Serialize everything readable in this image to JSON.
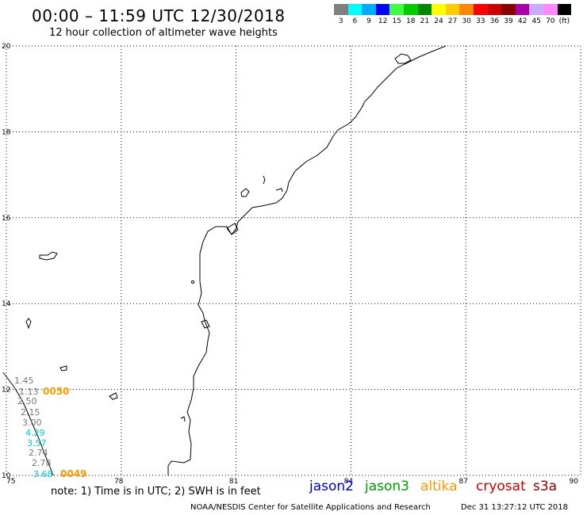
{
  "title": "00:00 – 11:59 UTC 12/30/2018",
  "subtitle": "12 hour collection of altimeter wave heights",
  "scale": {
    "colors": [
      "#7f7f7f",
      "#00ffff",
      "#00aaff",
      "#0000ff",
      "#40ff40",
      "#00cc00",
      "#008800",
      "#ffff00",
      "#ffcc00",
      "#ff8800",
      "#ff0000",
      "#cc0000",
      "#880000",
      "#aa00aa",
      "#ccaaff",
      "#ff88ff",
      "#000000"
    ],
    "labels": [
      "3",
      "6",
      "9",
      "12",
      "15",
      "18",
      "21",
      "24",
      "27",
      "30",
      "33",
      "36",
      "39",
      "42",
      "45",
      "70",
      "(ft)"
    ]
  },
  "axes": {
    "lon_ticks": [
      "75",
      "78",
      "81",
      "84",
      "87",
      "90"
    ],
    "lat_ticks": [
      "10",
      "12",
      "14",
      "16",
      "18",
      "20"
    ],
    "lon_range": [
      75,
      90
    ],
    "lat_range": [
      10,
      20
    ],
    "grid": "dotted"
  },
  "wave_labels": [
    {
      "text": "1.45",
      "color": "#777777"
    },
    {
      "text": "1.13",
      "color": "#777777"
    },
    {
      "text": "2.50",
      "color": "#777777"
    },
    {
      "text": "2.15",
      "color": "#777777"
    },
    {
      "text": "3.00",
      "color": "#777777"
    },
    {
      "text": "4.29",
      "color": "#00cccc"
    },
    {
      "text": "3.57",
      "color": "#00cccc"
    },
    {
      "text": "2.74",
      "color": "#777777"
    },
    {
      "text": "2.78",
      "color": "#777777"
    },
    {
      "text": "3.68",
      "color": "#00cccc"
    }
  ],
  "time_labels": [
    {
      "text": "0050",
      "color": "#ff9900"
    },
    {
      "text": "0049",
      "color": "#ff9900"
    }
  ],
  "note": "note:  1) Time is in UTC;  2) SWH is in feet",
  "satellites": [
    {
      "name": "jason2",
      "color": "#0000cc"
    },
    {
      "name": "jason3",
      "color": "#009900"
    },
    {
      "name": "altika",
      "color": "#ff9900"
    },
    {
      "name": "cryosat",
      "color": "#cc0000"
    },
    {
      "name": "s3a",
      "color": "#880000"
    }
  ],
  "credit": "NOAA/NESDIS Center for Satellite Applications and Research",
  "timestamp": "Dec 31 13:27:12 UTC 2018"
}
